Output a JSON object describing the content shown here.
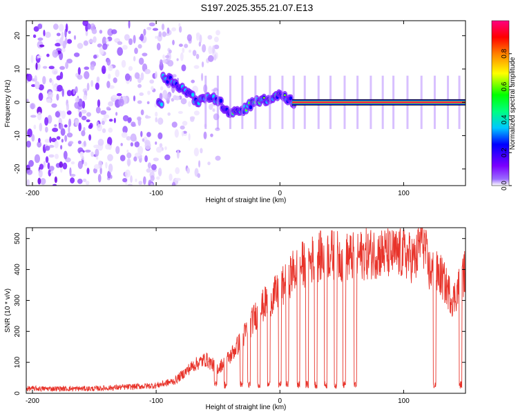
{
  "title": "S197.2025.355.21.07.E13",
  "chart_data": [
    {
      "type": "heatmap",
      "xlabel": "Height of straight line (km)",
      "ylabel": "Frequency (Hz)",
      "xlim": [
        -205,
        150
      ],
      "ylim": [
        -25,
        24.5
      ],
      "xticks": [
        -200,
        -100,
        0,
        100
      ],
      "yticks": [
        -20,
        -10,
        0,
        10,
        20
      ],
      "colorbar": {
        "label": "Normalized spectral amplitude",
        "range": [
          0,
          1
        ],
        "ticks": [
          0.0,
          0.2,
          0.4,
          0.6,
          0.8
        ],
        "colors": [
          "#ffffff",
          "#7a00ff",
          "#0000ff",
          "#00ffff",
          "#00ff00",
          "#ffff00",
          "#ff8000",
          "#ff0000",
          "#ff0080"
        ]
      },
      "features": {
        "noise_region_x": [
          -205,
          -90
        ],
        "noise_freq_range": [
          -25,
          24
        ],
        "trace": [
          [
            -95,
            8
          ],
          [
            -85,
            6
          ],
          [
            -75,
            3
          ],
          [
            -65,
            0
          ],
          [
            -55,
            2
          ],
          [
            -40,
            -3
          ],
          [
            -30,
            -2
          ],
          [
            -20,
            0
          ],
          [
            -10,
            1
          ],
          [
            0,
            2
          ],
          [
            10,
            0
          ],
          [
            150,
            0
          ]
        ],
        "steady_band_x": [
          10,
          150
        ],
        "steady_band_freq": 0
      }
    },
    {
      "type": "line",
      "xlabel": "Height of straight line (km)",
      "ylabel": "SNR (10 * v/v)",
      "xlim": [
        -205,
        150
      ],
      "ylim": [
        0,
        535
      ],
      "xticks": [
        -200,
        -100,
        0,
        100
      ],
      "yticks": [
        0,
        100,
        200,
        300,
        400,
        500
      ],
      "color": "#e8332a",
      "envelope": {
        "x": [
          -205,
          -150,
          -100,
          -85,
          -70,
          -60,
          -50,
          -40,
          -30,
          -20,
          -10,
          0,
          10,
          20,
          30,
          40,
          50,
          60,
          70,
          80,
          90,
          100,
          110,
          115,
          120,
          130,
          140,
          150
        ],
        "y": [
          15,
          15,
          25,
          40,
          90,
          110,
          80,
          120,
          180,
          250,
          300,
          330,
          390,
          420,
          440,
          450,
          440,
          440,
          450,
          455,
          450,
          450,
          430,
          520,
          400,
          380,
          300,
          400
        ]
      },
      "dropouts_x": [
        -52,
        -44,
        -31,
        -25,
        -17,
        -9,
        0,
        6,
        15,
        22,
        29,
        37,
        45,
        52,
        61,
        125,
        146
      ]
    }
  ]
}
